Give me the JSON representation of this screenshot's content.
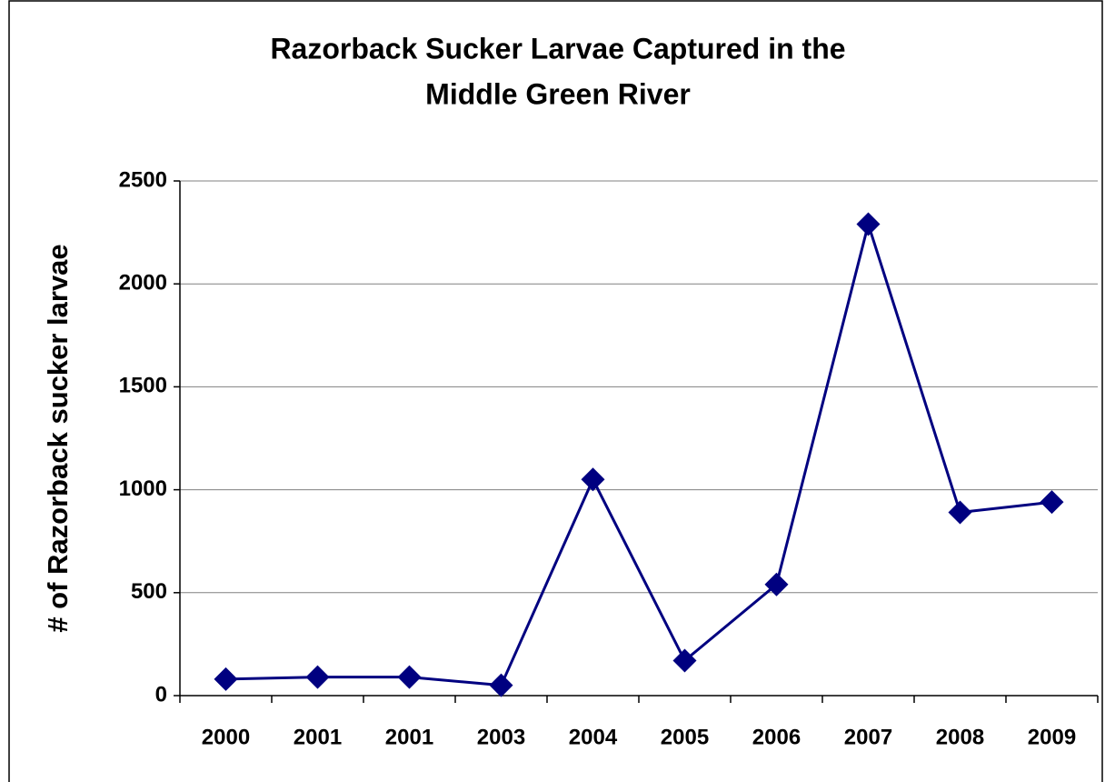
{
  "chart_data": {
    "type": "line",
    "title": [
      "Razorback Sucker Larvae Captured in the",
      "Middle Green River"
    ],
    "y_label": "# of Razorback sucker larvae",
    "categories": [
      "2000",
      "2001",
      "2001",
      "2003",
      "2004",
      "2005",
      "2006",
      "2007",
      "2008",
      "2009"
    ],
    "values": [
      80,
      90,
      90,
      50,
      1050,
      170,
      540,
      2290,
      890,
      940
    ],
    "color": "#000080",
    "ylim": [
      0,
      2500
    ],
    "yticks": [
      0,
      500,
      1000,
      1500,
      2000,
      2500
    ],
    "grid": true
  }
}
